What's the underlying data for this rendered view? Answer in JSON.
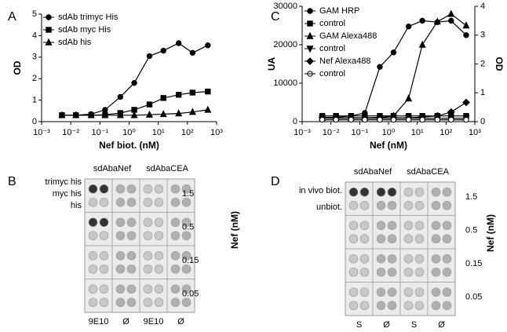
{
  "chart_data": [
    {
      "type": "line",
      "panel": "A",
      "xlabel": "Nef biot. (nM)",
      "ylabel": "OD",
      "xscale": "log",
      "xlim": [
        0.001,
        1000
      ],
      "xticks": [
        {
          "value": 0.001,
          "label": "10⁻³"
        },
        {
          "value": 0.01,
          "label": "10⁻²"
        },
        {
          "value": 0.1,
          "label": "10⁻¹"
        },
        {
          "value": 1,
          "label": "10⁰"
        },
        {
          "value": 10,
          "label": "10¹"
        },
        {
          "value": 100,
          "label": "10²"
        },
        {
          "value": 1000,
          "label": "10³"
        }
      ],
      "ylim": [
        0,
        5
      ],
      "yticks": [
        0,
        1,
        2,
        3,
        4,
        5
      ],
      "x": [
        0.005,
        0.015,
        0.05,
        0.15,
        0.5,
        1.5,
        5,
        15,
        50,
        150,
        500
      ],
      "series": [
        {
          "name": "sdAb trimyc His",
          "color": "#000000",
          "marker": "circle",
          "values": [
            0.3,
            0.3,
            0.35,
            0.55,
            1.15,
            1.8,
            3.05,
            3.3,
            3.65,
            3.2,
            3.55
          ]
        },
        {
          "name": "sdAb myc His",
          "color": "#000000",
          "marker": "square",
          "values": [
            0.3,
            0.3,
            0.3,
            0.32,
            0.4,
            0.55,
            0.8,
            1.1,
            1.25,
            1.35,
            1.4
          ]
        },
        {
          "name": "sdAb his",
          "color": "#000000",
          "marker": "triangle",
          "values": [
            0.3,
            0.3,
            0.3,
            0.3,
            0.3,
            0.3,
            0.32,
            0.35,
            0.38,
            0.45,
            0.55
          ]
        }
      ]
    },
    {
      "type": "line",
      "panel": "C",
      "xlabel": "Nef (nM)",
      "ylabel": "UA",
      "y2label": "OD",
      "xscale": "log",
      "xlim": [
        0.001,
        1000
      ],
      "xticks": [
        {
          "value": 0.001,
          "label": "10⁻³"
        },
        {
          "value": 0.01,
          "label": "10⁻²"
        },
        {
          "value": 0.1,
          "label": "10⁻¹"
        },
        {
          "value": 1,
          "label": "10⁰"
        },
        {
          "value": 10,
          "label": "10¹"
        },
        {
          "value": 100,
          "label": "10²"
        },
        {
          "value": 1000,
          "label": "10³"
        }
      ],
      "ylim": [
        0,
        30000
      ],
      "yticks": [
        0,
        10000,
        20000,
        30000
      ],
      "y2lim": [
        0,
        4
      ],
      "y2ticks": [
        0,
        1,
        2,
        3,
        4
      ],
      "x": [
        0.005,
        0.015,
        0.05,
        0.15,
        0.5,
        1.5,
        5,
        15,
        50,
        150,
        500
      ],
      "series": [
        {
          "name": "GAM HRP",
          "color": "#000000",
          "marker": "circle",
          "axis": "y2",
          "values": [
            0.15,
            0.15,
            0.2,
            0.3,
            1.9,
            2.4,
            3.3,
            3.5,
            3.45,
            3.5,
            3.0
          ]
        },
        {
          "name": "control",
          "color": "#000000",
          "marker": "square",
          "axis": "y2",
          "values": [
            0.2,
            0.2,
            0.2,
            0.2,
            0.2,
            0.2,
            0.2,
            0.2,
            0.2,
            0.2,
            0.2
          ]
        },
        {
          "name": "GAM Alexa488",
          "color": "#000000",
          "marker": "triangle",
          "values": [
            1000,
            1000,
            1000,
            1000,
            1100,
            1500,
            6000,
            20000,
            26000,
            28000,
            25000
          ]
        },
        {
          "name": "control",
          "color": "#000000",
          "marker": "triangle-down",
          "values": [
            900,
            900,
            900,
            900,
            900,
            900,
            900,
            900,
            900,
            900,
            900
          ]
        },
        {
          "name": "Nef Alexa488",
          "color": "#000000",
          "marker": "diamond",
          "values": [
            1000,
            1000,
            1000,
            1000,
            1000,
            1000,
            1000,
            1200,
            1500,
            2500,
            5000
          ]
        },
        {
          "name": "control",
          "color": "#000000",
          "marker": "circle-open",
          "values": [
            500,
            500,
            500,
            500,
            500,
            500,
            500,
            500,
            500,
            500,
            500
          ]
        }
      ]
    }
  ],
  "blots": [
    {
      "panel": "B",
      "columns": [
        "sdAbaNef",
        "sdAbaCEA"
      ],
      "rows": [
        "trimyc his",
        "myc his",
        "his"
      ],
      "concentrations": [
        1.5,
        0.5,
        0.15,
        0.05
      ],
      "axis_label": "Nef (nM)",
      "lanes": [
        "9E10",
        "Ø",
        "9E10",
        "Ø"
      ]
    },
    {
      "panel": "D",
      "columns": [
        "sdAbaNef",
        "sdAbaCEA"
      ],
      "rows": [
        "in vivo biot.",
        "unbiot."
      ],
      "concentrations": [
        1.5,
        0.5,
        0.15,
        0.05
      ],
      "axis_label": "Nef (nM)",
      "lanes": [
        "S",
        "Ø",
        "S",
        "Ø"
      ]
    }
  ]
}
